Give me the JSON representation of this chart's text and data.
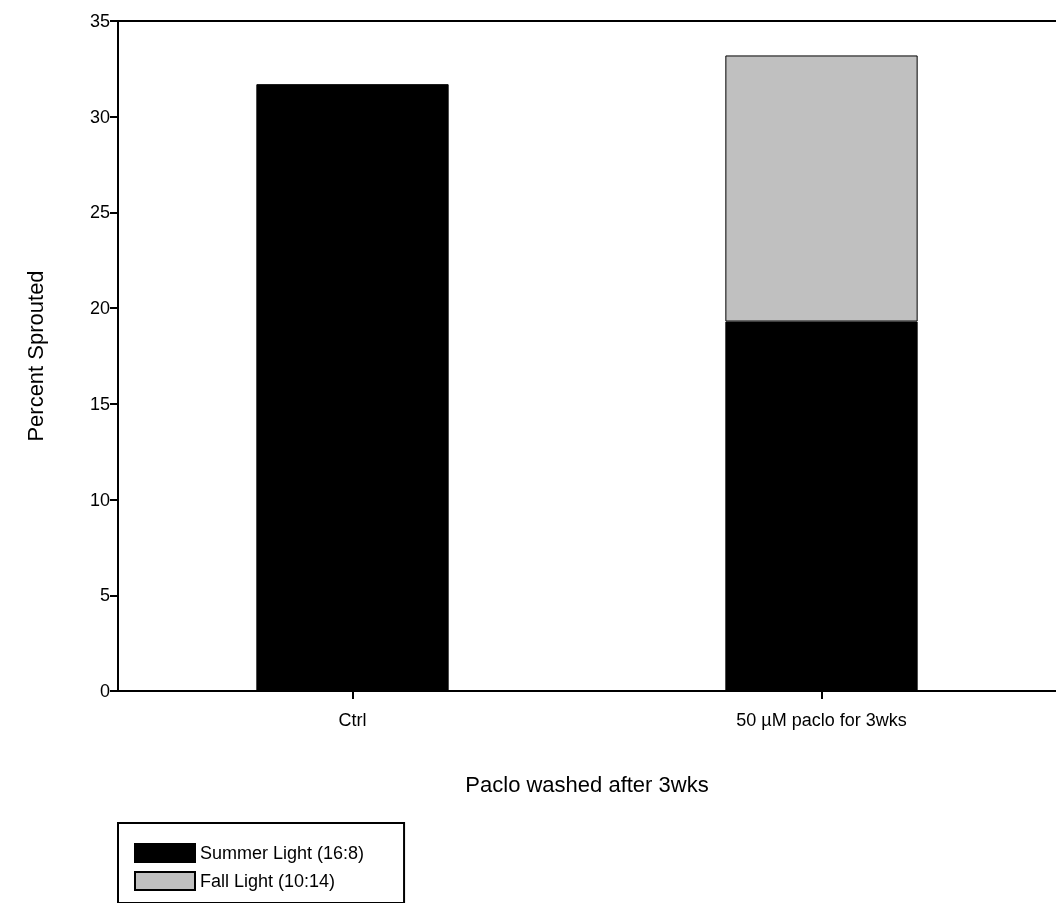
{
  "chart_data": {
    "type": "bar",
    "stacked": true,
    "xlabel": "Paclo washed after 3wks",
    "ylabel": "Percent Sprouted",
    "categories": [
      "Ctrl",
      "50 µM paclo for 3wks"
    ],
    "series": [
      {
        "name": "Summer Light (16:8)",
        "color": "#000000",
        "values": [
          31.7,
          19.3
        ]
      },
      {
        "name": "Fall Light (10:14)",
        "color": "#c0c0c0",
        "values": [
          null,
          13.9
        ]
      }
    ],
    "ylim": [
      0,
      35
    ],
    "yticks": [
      0,
      5,
      10,
      15,
      20,
      25,
      30,
      35
    ],
    "grid": false,
    "legend": "bottom left"
  }
}
